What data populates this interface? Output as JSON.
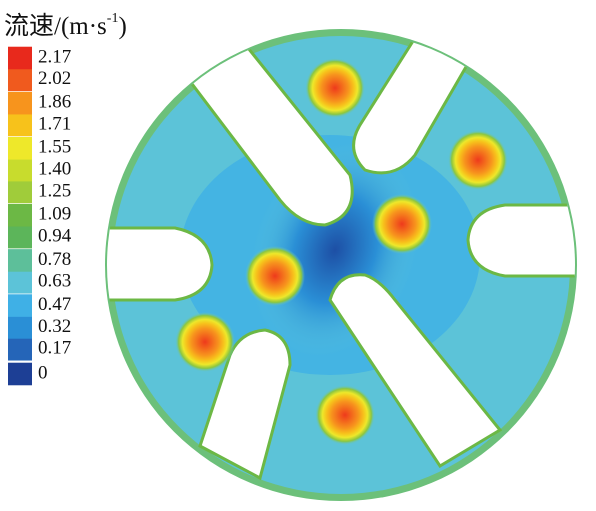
{
  "chart_data": {
    "type": "contour",
    "title": {
      "text": "流速/(m·s",
      "superscript": "-1",
      "suffix": ")"
    },
    "ylim": [
      0,
      2.17
    ],
    "yticks": [
      0,
      0.17,
      0.32,
      0.47,
      0.63,
      0.78,
      0.94,
      1.09,
      1.25,
      {
        "value": 1.4,
        "label": "1.40"
      },
      1.55,
      1.71,
      1.86,
      2.02,
      2.17
    ],
    "colors": [
      "#1d3f95",
      "#2565b8",
      "#2a8fd6",
      "#3fb0e6",
      "#5cc3d8",
      "#5dbf9a",
      "#5cb55a",
      "#6cb845",
      "#a0cc3a",
      "#c8dc2d",
      "#eee82a",
      "#f7c21b",
      "#f7941d",
      "#f05a1e",
      "#e8291c"
    ]
  }
}
